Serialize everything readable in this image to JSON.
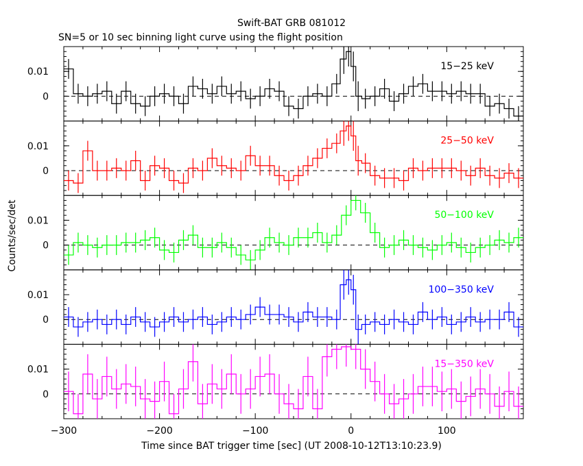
{
  "chart_data": {
    "type": "line",
    "title": "Swift-BAT GRB 081012",
    "subtitle": "SN=5 or 10 sec binning light curve using the flight position",
    "xlabel": "Time since BAT trigger time [sec] (UT 2008-10-12T13:10:23.9)",
    "ylabel": "Counts/sec/det",
    "xlim": [
      -300,
      180
    ],
    "x_ticks": [
      -300,
      -200,
      -100,
      0,
      100
    ],
    "x_tick_labels": [
      "−300",
      "−200",
      "−100",
      "0",
      "100"
    ],
    "y_ticks": [
      0,
      0.01
    ],
    "y_tick_labels": [
      "0",
      "0.01"
    ],
    "grid": false,
    "panels": [
      {
        "name": "15−25 keV",
        "color": "#000000",
        "ylim": [
          -0.01,
          0.02
        ],
        "x": [
          -295,
          -285,
          -275,
          -265,
          -255,
          -245,
          -235,
          -225,
          -215,
          -205,
          -195,
          -185,
          -175,
          -165,
          -155,
          -145,
          -135,
          -125,
          -115,
          -105,
          -95,
          -85,
          -75,
          -65,
          -55,
          -45,
          -35,
          -25,
          -15,
          -7.5,
          -2.5,
          2.5,
          7.5,
          15,
          25,
          35,
          45,
          55,
          65,
          75,
          85,
          95,
          105,
          115,
          125,
          135,
          145,
          155,
          165,
          175
        ],
        "y": [
          0.011,
          0.001,
          0.0,
          0.001,
          0.002,
          -0.003,
          0.002,
          -0.003,
          -0.004,
          0.0,
          0.001,
          0.0,
          -0.003,
          0.004,
          0.003,
          0.001,
          0.004,
          0.001,
          0.002,
          -0.001,
          0.0,
          0.003,
          0.002,
          -0.004,
          -0.005,
          0.0,
          0.001,
          0.0,
          0.005,
          0.015,
          0.018,
          0.012,
          0.0,
          -0.001,
          0.0,
          0.003,
          -0.002,
          0.001,
          0.004,
          0.005,
          0.002,
          0.002,
          0.001,
          0.002,
          0.001,
          0.001,
          -0.004,
          -0.003,
          -0.005,
          -0.008
        ],
        "err": [
          0.004,
          0.004,
          0.004,
          0.004,
          0.004,
          0.004,
          0.004,
          0.004,
          0.004,
          0.004,
          0.004,
          0.004,
          0.004,
          0.004,
          0.004,
          0.004,
          0.004,
          0.004,
          0.004,
          0.004,
          0.004,
          0.004,
          0.004,
          0.004,
          0.004,
          0.004,
          0.004,
          0.004,
          0.004,
          0.006,
          0.006,
          0.006,
          0.006,
          0.004,
          0.004,
          0.004,
          0.004,
          0.004,
          0.004,
          0.004,
          0.004,
          0.004,
          0.004,
          0.004,
          0.004,
          0.004,
          0.004,
          0.004,
          0.004,
          0.004
        ]
      },
      {
        "name": "25−50 keV",
        "color": "#ff0000",
        "ylim": [
          -0.01,
          0.02
        ],
        "x": [
          -295,
          -285,
          -275,
          -265,
          -255,
          -245,
          -235,
          -225,
          -215,
          -205,
          -195,
          -185,
          -175,
          -165,
          -155,
          -145,
          -135,
          -125,
          -115,
          -105,
          -95,
          -85,
          -75,
          -65,
          -55,
          -45,
          -35,
          -25,
          -15,
          -7.5,
          -2.5,
          2.5,
          7.5,
          15,
          25,
          35,
          45,
          55,
          65,
          75,
          85,
          95,
          105,
          115,
          125,
          135,
          145,
          155,
          165,
          175
        ],
        "y": [
          -0.004,
          -0.005,
          0.008,
          0.0,
          0.0,
          0.001,
          0.0,
          0.004,
          -0.004,
          0.002,
          0.001,
          -0.004,
          -0.005,
          0.001,
          0.0,
          0.005,
          0.002,
          0.001,
          0.0,
          0.006,
          0.002,
          0.002,
          -0.002,
          -0.004,
          -0.002,
          0.002,
          0.005,
          0.009,
          0.011,
          0.016,
          0.018,
          0.014,
          0.004,
          0.003,
          -0.002,
          -0.003,
          -0.003,
          -0.004,
          0.001,
          0.0,
          0.001,
          0.001,
          0.001,
          0.0,
          -0.002,
          0.001,
          -0.002,
          -0.003,
          -0.001,
          -0.003
        ],
        "err": [
          0.004,
          0.004,
          0.004,
          0.004,
          0.004,
          0.004,
          0.004,
          0.004,
          0.004,
          0.004,
          0.004,
          0.004,
          0.004,
          0.004,
          0.004,
          0.004,
          0.004,
          0.004,
          0.004,
          0.004,
          0.004,
          0.004,
          0.004,
          0.004,
          0.004,
          0.004,
          0.004,
          0.004,
          0.004,
          0.006,
          0.006,
          0.006,
          0.006,
          0.004,
          0.004,
          0.004,
          0.004,
          0.004,
          0.004,
          0.004,
          0.004,
          0.004,
          0.004,
          0.004,
          0.004,
          0.004,
          0.004,
          0.004,
          0.004,
          0.004
        ]
      },
      {
        "name": "50−100 keV",
        "color": "#00ff00",
        "ylim": [
          -0.01,
          0.02
        ],
        "x": [
          -295,
          -285,
          -275,
          -265,
          -255,
          -245,
          -235,
          -225,
          -215,
          -205,
          -195,
          -185,
          -175,
          -165,
          -155,
          -145,
          -135,
          -125,
          -115,
          -105,
          -95,
          -85,
          -75,
          -65,
          -55,
          -45,
          -35,
          -25,
          -15,
          -5,
          5,
          15,
          25,
          35,
          45,
          55,
          65,
          75,
          85,
          95,
          105,
          115,
          125,
          135,
          145,
          155,
          165,
          175
        ],
        "y": [
          -0.004,
          0.001,
          0.0,
          -0.001,
          0.0,
          0.0,
          0.001,
          0.001,
          0.002,
          0.003,
          -0.002,
          -0.003,
          0.002,
          0.004,
          -0.001,
          -0.001,
          0.001,
          -0.001,
          -0.004,
          -0.006,
          -0.002,
          0.003,
          0.001,
          0.0,
          0.003,
          0.003,
          0.005,
          0.001,
          0.004,
          0.012,
          0.018,
          0.013,
          0.005,
          -0.001,
          0.0,
          0.002,
          0.0,
          -0.001,
          -0.002,
          0.0,
          0.001,
          -0.001,
          -0.003,
          -0.001,
          0.0,
          0.002,
          0.001,
          0.003
        ],
        "err": [
          0.004,
          0.004,
          0.004,
          0.004,
          0.004,
          0.004,
          0.004,
          0.004,
          0.004,
          0.004,
          0.004,
          0.004,
          0.004,
          0.004,
          0.004,
          0.004,
          0.004,
          0.004,
          0.004,
          0.004,
          0.004,
          0.004,
          0.004,
          0.004,
          0.004,
          0.004,
          0.004,
          0.004,
          0.004,
          0.004,
          0.004,
          0.004,
          0.004,
          0.004,
          0.004,
          0.004,
          0.004,
          0.004,
          0.004,
          0.004,
          0.004,
          0.004,
          0.004,
          0.004,
          0.004,
          0.004,
          0.004,
          0.004
        ]
      },
      {
        "name": "100−350 keV",
        "color": "#0000ff",
        "ylim": [
          -0.01,
          0.02
        ],
        "x": [
          -295,
          -285,
          -275,
          -265,
          -255,
          -245,
          -235,
          -225,
          -215,
          -205,
          -195,
          -185,
          -175,
          -165,
          -155,
          -145,
          -135,
          -125,
          -115,
          -105,
          -95,
          -85,
          -75,
          -65,
          -55,
          -45,
          -35,
          -25,
          -15,
          -7.5,
          -2.5,
          2.5,
          7.5,
          15,
          25,
          35,
          45,
          55,
          65,
          75,
          85,
          95,
          105,
          115,
          125,
          135,
          145,
          155,
          165,
          175
        ],
        "y": [
          0.001,
          -0.003,
          -0.001,
          0.0,
          -0.002,
          0.0,
          -0.002,
          0.001,
          -0.001,
          -0.003,
          -0.001,
          0.001,
          -0.001,
          0.0,
          0.001,
          -0.002,
          -0.001,
          0.001,
          0.0,
          0.002,
          0.005,
          0.002,
          0.002,
          0.001,
          -0.001,
          0.003,
          0.001,
          0.001,
          0.0,
          0.014,
          0.016,
          0.012,
          -0.004,
          -0.002,
          -0.001,
          -0.002,
          0.0,
          -0.001,
          -0.002,
          0.003,
          0.0,
          0.001,
          -0.002,
          -0.001,
          0.001,
          -0.001,
          0.0,
          0.0,
          0.003,
          -0.003
        ],
        "err": [
          0.004,
          0.004,
          0.004,
          0.004,
          0.004,
          0.004,
          0.004,
          0.004,
          0.004,
          0.004,
          0.004,
          0.004,
          0.004,
          0.004,
          0.004,
          0.004,
          0.004,
          0.004,
          0.004,
          0.004,
          0.004,
          0.004,
          0.004,
          0.004,
          0.004,
          0.004,
          0.004,
          0.004,
          0.004,
          0.006,
          0.006,
          0.006,
          0.006,
          0.004,
          0.004,
          0.004,
          0.004,
          0.004,
          0.004,
          0.004,
          0.004,
          0.004,
          0.004,
          0.004,
          0.004,
          0.004,
          0.004,
          0.004,
          0.004,
          0.004
        ]
      },
      {
        "name": "15−350 keV",
        "color": "#ff00ff",
        "ylim": [
          -0.01,
          0.02
        ],
        "x": [
          -295,
          -285,
          -275,
          -265,
          -255,
          -245,
          -235,
          -225,
          -215,
          -205,
          -195,
          -185,
          -175,
          -165,
          -155,
          -145,
          -135,
          -125,
          -115,
          -105,
          -95,
          -85,
          -75,
          -65,
          -55,
          -45,
          -35,
          -25,
          -15,
          -5,
          5,
          15,
          25,
          35,
          45,
          55,
          65,
          75,
          85,
          95,
          105,
          115,
          125,
          135,
          145,
          155,
          165,
          175
        ],
        "y": [
          0.001,
          -0.008,
          0.008,
          -0.002,
          0.007,
          0.002,
          0.004,
          0.003,
          -0.002,
          -0.003,
          0.005,
          -0.008,
          0.002,
          0.013,
          -0.004,
          0.004,
          0.002,
          0.008,
          0.0,
          0.002,
          0.007,
          0.008,
          0.0,
          -0.004,
          -0.006,
          0.007,
          -0.006,
          0.015,
          0.018,
          0.019,
          0.018,
          0.01,
          0.005,
          0.0,
          -0.004,
          -0.002,
          0.0,
          0.003,
          0.003,
          0.001,
          0.002,
          -0.003,
          -0.001,
          0.002,
          0.0,
          -0.005,
          0.001,
          -0.005
        ],
        "err": [
          0.008,
          0.008,
          0.008,
          0.008,
          0.008,
          0.008,
          0.008,
          0.008,
          0.008,
          0.008,
          0.008,
          0.008,
          0.008,
          0.008,
          0.008,
          0.008,
          0.008,
          0.008,
          0.008,
          0.008,
          0.008,
          0.008,
          0.008,
          0.008,
          0.008,
          0.008,
          0.008,
          0.008,
          0.008,
          0.008,
          0.008,
          0.008,
          0.008,
          0.008,
          0.008,
          0.008,
          0.008,
          0.008,
          0.008,
          0.008,
          0.008,
          0.008,
          0.008,
          0.008,
          0.008,
          0.008,
          0.008,
          0.008
        ]
      }
    ]
  }
}
